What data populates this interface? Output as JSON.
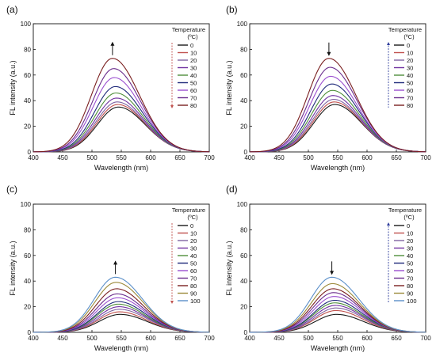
{
  "chart_data": [
    {
      "panel_label": "(a)",
      "type": "line",
      "xlabel": "Wavelength (nm)",
      "ylabel": "FL intensity (a.u.)",
      "xlim": [
        400,
        700
      ],
      "ylim": [
        0,
        100
      ],
      "xticks": [
        "400",
        "450",
        "500",
        "550",
        "600",
        "650",
        "700"
      ],
      "yticks": [
        "0",
        "20",
        "40",
        "60",
        "80",
        "100"
      ],
      "legend_title": [
        "Temperature",
        "(ºC)"
      ],
      "legend_position": "right",
      "arrow_direction": "up",
      "legend_arrow_direction": "down",
      "series": [
        {
          "name": "0",
          "color": "#1a1a1a",
          "peak_x": 545,
          "peak_y": 35
        },
        {
          "name": "10",
          "color": "#c0504d",
          "peak_x": 544,
          "peak_y": 37
        },
        {
          "name": "20",
          "color": "#8064a2",
          "peak_x": 543,
          "peak_y": 39
        },
        {
          "name": "30",
          "color": "#7030a0",
          "peak_x": 542,
          "peak_y": 42
        },
        {
          "name": "40",
          "color": "#4f8f3a",
          "peak_x": 541,
          "peak_y": 46
        },
        {
          "name": "50",
          "color": "#1f2a7a",
          "peak_x": 540,
          "peak_y": 51
        },
        {
          "name": "60",
          "color": "#9b4fd0",
          "peak_x": 538,
          "peak_y": 58
        },
        {
          "name": "70",
          "color": "#6a2c8c",
          "peak_x": 537,
          "peak_y": 65
        },
        {
          "name": "80",
          "color": "#7a1f1f",
          "peak_x": 535,
          "peak_y": 73
        }
      ]
    },
    {
      "panel_label": "(b)",
      "type": "line",
      "xlabel": "Wavelength (nm)",
      "ylabel": "FL intensity (a.u.)",
      "xlim": [
        400,
        700
      ],
      "ylim": [
        0,
        100
      ],
      "xticks": [
        "400",
        "450",
        "500",
        "550",
        "600",
        "650",
        "700"
      ],
      "yticks": [
        "0",
        "20",
        "40",
        "60",
        "80",
        "100"
      ],
      "legend_title": [
        "Temperature",
        "(ºC)"
      ],
      "legend_position": "right",
      "arrow_direction": "down",
      "legend_arrow_direction": "up",
      "series": [
        {
          "name": "0",
          "color": "#1a1a1a",
          "peak_x": 545,
          "peak_y": 37
        },
        {
          "name": "10",
          "color": "#c0504d",
          "peak_x": 544,
          "peak_y": 39
        },
        {
          "name": "20",
          "color": "#8064a2",
          "peak_x": 543,
          "peak_y": 41
        },
        {
          "name": "30",
          "color": "#7030a0",
          "peak_x": 542,
          "peak_y": 44
        },
        {
          "name": "40",
          "color": "#4f8f3a",
          "peak_x": 541,
          "peak_y": 48
        },
        {
          "name": "50",
          "color": "#1f2a7a",
          "peak_x": 540,
          "peak_y": 53
        },
        {
          "name": "60",
          "color": "#9b4fd0",
          "peak_x": 538,
          "peak_y": 59
        },
        {
          "name": "70",
          "color": "#6a2c8c",
          "peak_x": 537,
          "peak_y": 66
        },
        {
          "name": "80",
          "color": "#7a1f1f",
          "peak_x": 535,
          "peak_y": 73
        }
      ]
    },
    {
      "panel_label": "(c)",
      "type": "line",
      "xlabel": "Wavelength (nm)",
      "ylabel": "FL intensity (a.u.)",
      "xlim": [
        400,
        700
      ],
      "ylim": [
        0,
        100
      ],
      "xticks": [
        "400",
        "450",
        "500",
        "550",
        "600",
        "650",
        "700"
      ],
      "yticks": [
        "0",
        "20",
        "40",
        "60",
        "80",
        "100"
      ],
      "legend_title": [
        "Temperature",
        "(ºC)"
      ],
      "legend_position": "right",
      "arrow_direction": "up",
      "legend_arrow_direction": "down",
      "series": [
        {
          "name": "0",
          "color": "#1a1a1a",
          "peak_x": 548,
          "peak_y": 14
        },
        {
          "name": "10",
          "color": "#c0504d",
          "peak_x": 547,
          "peak_y": 16
        },
        {
          "name": "20",
          "color": "#8064a2",
          "peak_x": 547,
          "peak_y": 18
        },
        {
          "name": "30",
          "color": "#7030a0",
          "peak_x": 546,
          "peak_y": 20
        },
        {
          "name": "40",
          "color": "#4f8f3a",
          "peak_x": 545,
          "peak_y": 22
        },
        {
          "name": "50",
          "color": "#1f2a7a",
          "peak_x": 545,
          "peak_y": 24
        },
        {
          "name": "60",
          "color": "#9b4fd0",
          "peak_x": 544,
          "peak_y": 27
        },
        {
          "name": "70",
          "color": "#6a2c8c",
          "peak_x": 543,
          "peak_y": 30
        },
        {
          "name": "80",
          "color": "#7a1f1f",
          "peak_x": 542,
          "peak_y": 34
        },
        {
          "name": "90",
          "color": "#9c8a3a",
          "peak_x": 541,
          "peak_y": 39
        },
        {
          "name": "100",
          "color": "#5b8fc9",
          "peak_x": 540,
          "peak_y": 43
        }
      ]
    },
    {
      "panel_label": "(d)",
      "type": "line",
      "xlabel": "Wavelength (nm)",
      "ylabel": "FL intensity (a.u.)",
      "xlim": [
        400,
        700
      ],
      "ylim": [
        0,
        100
      ],
      "xticks": [
        "400",
        "450",
        "500",
        "550",
        "600",
        "650",
        "700"
      ],
      "yticks": [
        "0",
        "20",
        "40",
        "60",
        "80",
        "100"
      ],
      "legend_title": [
        "Temperature",
        "(ºC)"
      ],
      "legend_position": "right",
      "arrow_direction": "down",
      "legend_arrow_direction": "up",
      "series": [
        {
          "name": "0",
          "color": "#1a1a1a",
          "peak_x": 548,
          "peak_y": 14
        },
        {
          "name": "10",
          "color": "#c0504d",
          "peak_x": 547,
          "peak_y": 17
        },
        {
          "name": "20",
          "color": "#8064a2",
          "peak_x": 547,
          "peak_y": 19
        },
        {
          "name": "30",
          "color": "#7030a0",
          "peak_x": 546,
          "peak_y": 21
        },
        {
          "name": "40",
          "color": "#4f8f3a",
          "peak_x": 545,
          "peak_y": 23
        },
        {
          "name": "50",
          "color": "#1f2a7a",
          "peak_x": 545,
          "peak_y": 25
        },
        {
          "name": "60",
          "color": "#9b4fd0",
          "peak_x": 544,
          "peak_y": 28
        },
        {
          "name": "70",
          "color": "#6a2c8c",
          "peak_x": 543,
          "peak_y": 31
        },
        {
          "name": "80",
          "color": "#7a1f1f",
          "peak_x": 542,
          "peak_y": 34
        },
        {
          "name": "90",
          "color": "#9c8a3a",
          "peak_x": 541,
          "peak_y": 38
        },
        {
          "name": "100",
          "color": "#5b8fc9",
          "peak_x": 540,
          "peak_y": 43
        }
      ]
    }
  ]
}
